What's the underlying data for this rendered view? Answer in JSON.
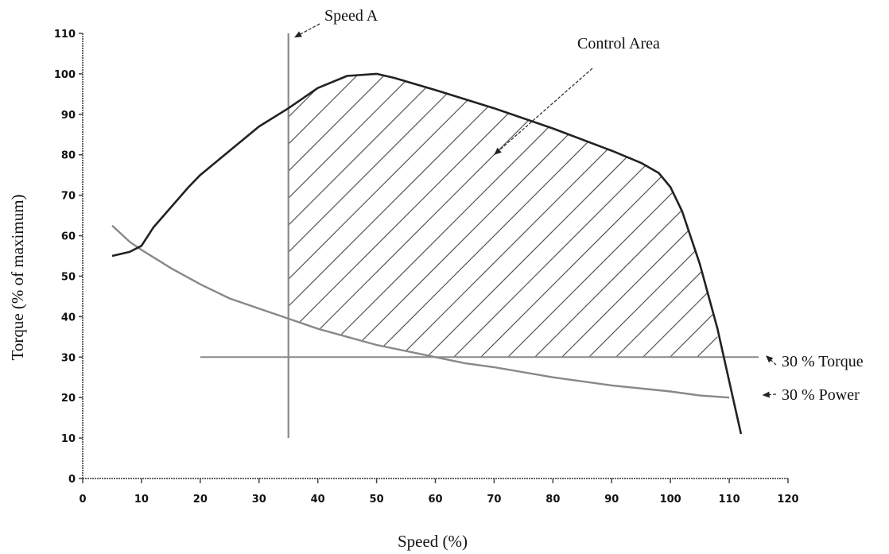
{
  "chart_data": {
    "type": "line",
    "xlabel": "Speed (%)",
    "ylabel": "Torque (% of maximum)",
    "xlim": [
      0,
      120
    ],
    "ylim": [
      0,
      110
    ],
    "x_ticks": [
      0,
      10,
      20,
      30,
      40,
      50,
      60,
      70,
      80,
      90,
      100,
      110,
      120
    ],
    "y_ticks": [
      0,
      10,
      20,
      30,
      40,
      50,
      60,
      70,
      80,
      90,
      100,
      110
    ],
    "grid": false,
    "series": [
      {
        "role": "torque-curve",
        "color": "#222222",
        "points": [
          [
            5,
            55
          ],
          [
            8,
            56
          ],
          [
            10,
            57.5
          ],
          [
            12,
            62
          ],
          [
            15,
            67
          ],
          [
            18,
            72
          ],
          [
            20,
            75
          ],
          [
            25,
            81
          ],
          [
            30,
            87
          ],
          [
            35,
            91.5
          ],
          [
            40,
            96.5
          ],
          [
            45,
            99.5
          ],
          [
            50,
            100
          ],
          [
            53,
            99
          ],
          [
            60,
            96
          ],
          [
            70,
            91.5
          ],
          [
            80,
            86.5
          ],
          [
            90,
            81
          ],
          [
            95,
            78
          ],
          [
            98,
            75.5
          ],
          [
            100,
            72
          ],
          [
            102,
            66
          ],
          [
            105,
            53
          ],
          [
            108,
            37
          ],
          [
            110,
            24
          ],
          [
            112,
            11
          ]
        ]
      },
      {
        "role": "constant-power-curve",
        "color": "#888888",
        "points": [
          [
            5,
            62.5
          ],
          [
            8,
            58.5
          ],
          [
            10,
            56.5
          ],
          [
            15,
            52
          ],
          [
            20,
            48
          ],
          [
            25,
            44.5
          ],
          [
            30,
            42
          ],
          [
            35,
            39.5
          ],
          [
            40,
            37
          ],
          [
            45,
            35
          ],
          [
            50,
            33
          ],
          [
            55,
            31.5
          ],
          [
            60,
            30
          ],
          [
            65,
            28.5
          ],
          [
            70,
            27.5
          ],
          [
            80,
            25
          ],
          [
            90,
            23
          ],
          [
            100,
            21.5
          ],
          [
            105,
            20.5
          ],
          [
            110,
            20
          ]
        ]
      },
      {
        "role": "torque-30-line",
        "color": "#888888",
        "points": [
          [
            20,
            30
          ],
          [
            115,
            30
          ]
        ]
      },
      {
        "role": "speed-a-line",
        "color": "#888888",
        "points": [
          [
            35,
            10
          ],
          [
            35,
            110
          ]
        ]
      }
    ],
    "control_area": {
      "x_range": [
        35,
        108
      ],
      "hatch": "diagonal"
    },
    "annotations": [
      {
        "text": "Speed A",
        "points_to": [
          36,
          109
        ]
      },
      {
        "text": "Control Area",
        "points_to": [
          70,
          80
        ]
      },
      {
        "text": "30 % Torque",
        "points_to": [
          115,
          30
        ]
      },
      {
        "text": "30 % Power",
        "points_to": [
          114,
          20
        ]
      }
    ]
  }
}
